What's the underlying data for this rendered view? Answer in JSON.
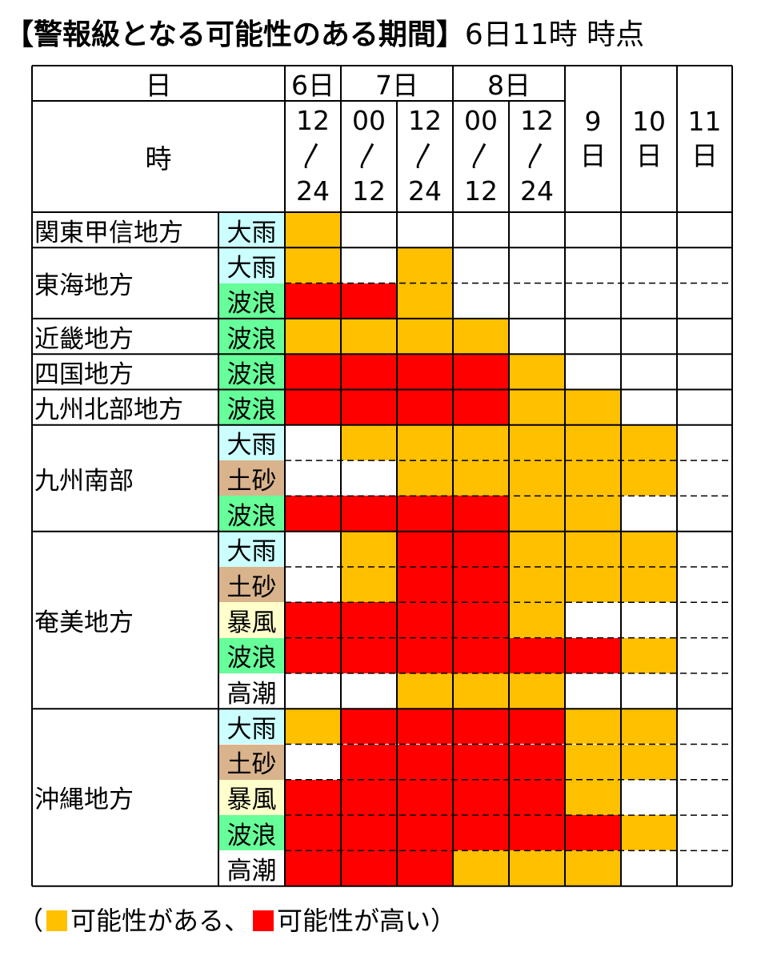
{
  "title": {
    "main": "【警報級となる可能性のある期間】",
    "sub": "6日11時 時点"
  },
  "header": {
    "day_label": "日",
    "hour_label": "時",
    "days": [
      "6日",
      "7日",
      "8日"
    ],
    "period_cols": [
      {
        "start": "12",
        "sep": "〳",
        "end": "24"
      },
      {
        "start": "00",
        "sep": "〳",
        "end": "12"
      },
      {
        "start": "12",
        "sep": "〳",
        "end": "24"
      },
      {
        "start": "00",
        "sep": "〳",
        "end": "12"
      },
      {
        "start": "12",
        "sep": "〳",
        "end": "24"
      }
    ],
    "whole_days": [
      {
        "num": "9",
        "unit": "日"
      },
      {
        "num": "10",
        "unit": "日"
      },
      {
        "num": "11",
        "unit": "日"
      }
    ]
  },
  "colors": {
    "possible": "#FFC000",
    "high": "#FF0000",
    "none": "#FFFFFF",
    "hazard_bg": {
      "大雨": "#CCFFFF",
      "土砂": "#D9B38C",
      "暴風": "#FFFFCC",
      "波浪": "#66FF99",
      "高潮": "#FFFFFF"
    }
  },
  "regions": [
    {
      "name": "関東甲信地方",
      "rows": [
        {
          "hazard": "大雨",
          "levels": [
            1,
            0,
            0,
            0,
            0,
            0,
            0,
            0
          ]
        }
      ]
    },
    {
      "name": "東海地方",
      "rows": [
        {
          "hazard": "大雨",
          "levels": [
            1,
            0,
            1,
            0,
            0,
            0,
            0,
            0
          ]
        },
        {
          "hazard": "波浪",
          "levels": [
            2,
            2,
            1,
            0,
            0,
            0,
            0,
            0
          ]
        }
      ]
    },
    {
      "name": "近畿地方",
      "rows": [
        {
          "hazard": "波浪",
          "levels": [
            1,
            1,
            1,
            1,
            0,
            0,
            0,
            0
          ]
        }
      ]
    },
    {
      "name": "四国地方",
      "rows": [
        {
          "hazard": "波浪",
          "levels": [
            2,
            2,
            2,
            2,
            1,
            0,
            0,
            0
          ]
        }
      ]
    },
    {
      "name": "九州北部地方",
      "rows": [
        {
          "hazard": "波浪",
          "levels": [
            2,
            2,
            2,
            2,
            1,
            1,
            0,
            0
          ]
        }
      ]
    },
    {
      "name": "九州南部",
      "rows": [
        {
          "hazard": "大雨",
          "levels": [
            0,
            1,
            1,
            1,
            1,
            1,
            1,
            0
          ]
        },
        {
          "hazard": "土砂",
          "levels": [
            0,
            0,
            1,
            1,
            1,
            1,
            1,
            0
          ]
        },
        {
          "hazard": "波浪",
          "levels": [
            2,
            2,
            2,
            2,
            1,
            1,
            0,
            0
          ]
        }
      ]
    },
    {
      "name": "奄美地方",
      "rows": [
        {
          "hazard": "大雨",
          "levels": [
            0,
            1,
            2,
            2,
            1,
            1,
            1,
            0
          ]
        },
        {
          "hazard": "土砂",
          "levels": [
            0,
            1,
            2,
            2,
            1,
            1,
            1,
            0
          ]
        },
        {
          "hazard": "暴風",
          "levels": [
            2,
            2,
            2,
            2,
            1,
            0,
            0,
            0
          ]
        },
        {
          "hazard": "波浪",
          "levels": [
            2,
            2,
            2,
            2,
            2,
            2,
            1,
            0
          ]
        },
        {
          "hazard": "高潮",
          "levels": [
            0,
            0,
            1,
            1,
            1,
            0,
            0,
            0
          ]
        }
      ]
    },
    {
      "name": "沖縄地方",
      "rows": [
        {
          "hazard": "大雨",
          "levels": [
            1,
            2,
            2,
            2,
            2,
            1,
            1,
            0
          ]
        },
        {
          "hazard": "土砂",
          "levels": [
            0,
            2,
            2,
            2,
            2,
            1,
            1,
            0
          ]
        },
        {
          "hazard": "暴風",
          "levels": [
            2,
            2,
            2,
            2,
            2,
            1,
            0,
            0
          ]
        },
        {
          "hazard": "波浪",
          "levels": [
            2,
            2,
            2,
            2,
            2,
            2,
            1,
            0
          ]
        },
        {
          "hazard": "高潮",
          "levels": [
            2,
            2,
            2,
            1,
            1,
            1,
            0,
            0
          ]
        }
      ]
    }
  ],
  "legend": {
    "open": "（",
    "possible_label": "可能性がある、",
    "high_label": "可能性が高い",
    "close": "）"
  }
}
